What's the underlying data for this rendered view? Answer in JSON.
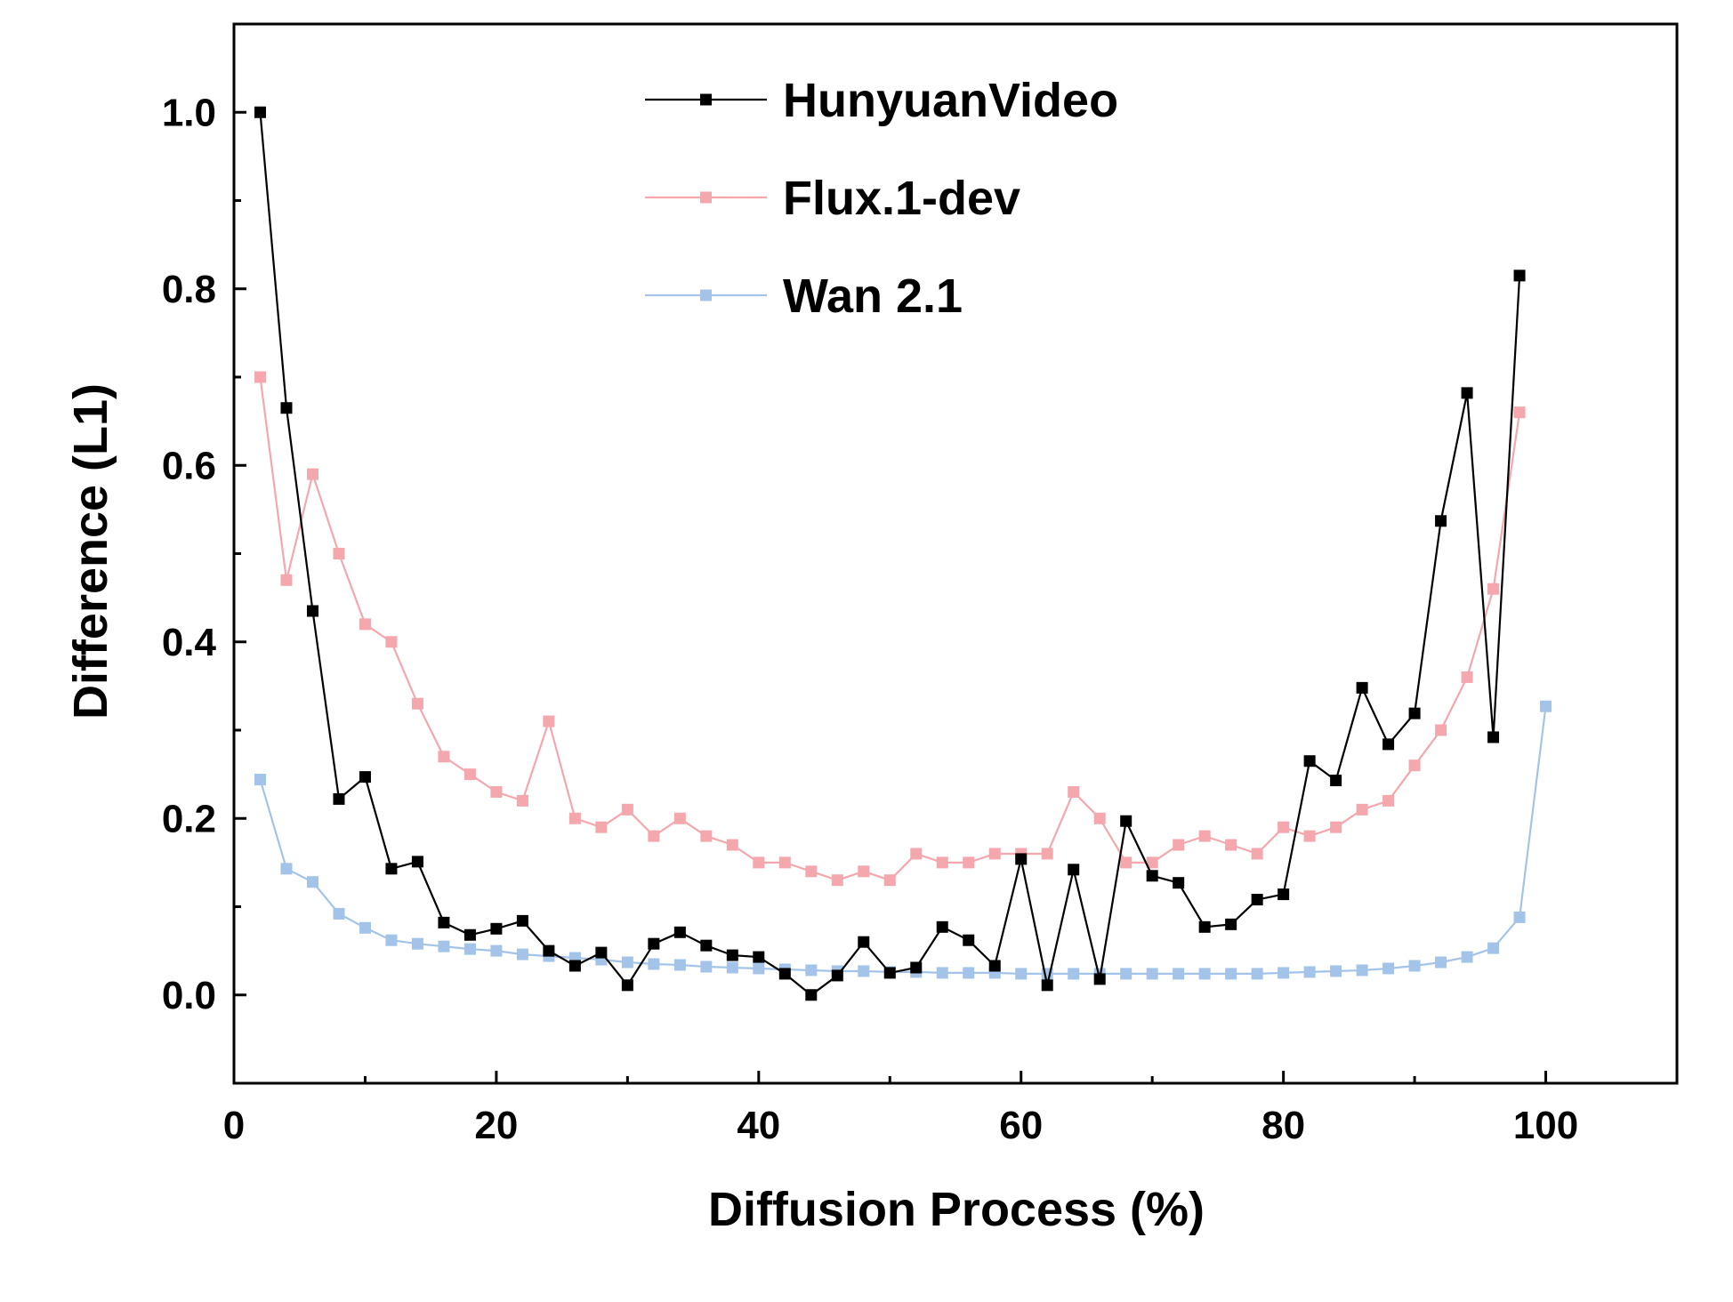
{
  "chart_data": {
    "type": "line",
    "title": "",
    "xlabel": "Diffusion Process (%)",
    "ylabel": "Difference (L1)",
    "xlim": [
      0,
      110
    ],
    "ylim": [
      -0.1,
      1.1
    ],
    "xticks": [
      0,
      20,
      40,
      60,
      80,
      100
    ],
    "yticks": [
      0.0,
      0.2,
      0.4,
      0.6,
      0.8,
      1.0
    ],
    "xtick_labels": [
      "0",
      "20",
      "40",
      "60",
      "80",
      "100"
    ],
    "ytick_labels": [
      "0.0",
      "0.2",
      "0.4",
      "0.6",
      "0.8",
      "1.0"
    ],
    "grid": false,
    "legend_position": "top-center",
    "series": [
      {
        "name": "HunyuanVideo",
        "color": "#000000",
        "marker": "square",
        "x": [
          2,
          4,
          6,
          8,
          10,
          12,
          14,
          16,
          18,
          20,
          22,
          24,
          26,
          28,
          30,
          32,
          34,
          36,
          38,
          40,
          42,
          44,
          46,
          48,
          50,
          52,
          54,
          56,
          58,
          60,
          62,
          64,
          66,
          68,
          70,
          72,
          74,
          76,
          78,
          80,
          82,
          84,
          86,
          88,
          90,
          92,
          94,
          96,
          98
        ],
        "y": [
          1.0,
          0.665,
          0.435,
          0.222,
          0.247,
          0.143,
          0.151,
          0.082,
          0.068,
          0.075,
          0.084,
          0.05,
          0.033,
          0.048,
          0.011,
          0.058,
          0.071,
          0.056,
          0.045,
          0.043,
          0.024,
          0.0,
          0.022,
          0.06,
          0.025,
          0.031,
          0.077,
          0.062,
          0.033,
          0.154,
          0.011,
          0.142,
          0.018,
          0.197,
          0.135,
          0.127,
          0.077,
          0.08,
          0.108,
          0.114,
          0.265,
          0.243,
          0.348,
          0.284,
          0.319,
          0.537,
          0.682,
          0.292,
          0.815
        ]
      },
      {
        "name": "Flux.1-dev",
        "color": "#f4a7ad",
        "marker": "square",
        "x": [
          2,
          4,
          6,
          8,
          10,
          12,
          14,
          16,
          18,
          20,
          22,
          24,
          26,
          28,
          30,
          32,
          34,
          36,
          38,
          40,
          42,
          44,
          46,
          48,
          50,
          52,
          54,
          56,
          58,
          60,
          62,
          64,
          66,
          68,
          70,
          72,
          74,
          76,
          78,
          80,
          82,
          84,
          86,
          88,
          90,
          92,
          94,
          96,
          98
        ],
        "y": [
          0.7,
          0.47,
          0.59,
          0.5,
          0.42,
          0.4,
          0.33,
          0.27,
          0.25,
          0.23,
          0.22,
          0.31,
          0.2,
          0.19,
          0.21,
          0.18,
          0.2,
          0.18,
          0.17,
          0.15,
          0.15,
          0.14,
          0.13,
          0.14,
          0.13,
          0.16,
          0.15,
          0.15,
          0.16,
          0.16,
          0.16,
          0.23,
          0.2,
          0.15,
          0.15,
          0.17,
          0.18,
          0.17,
          0.16,
          0.19,
          0.18,
          0.19,
          0.21,
          0.22,
          0.26,
          0.3,
          0.36,
          0.46,
          0.66
        ]
      },
      {
        "name": "Wan 2.1",
        "color": "#a3c4e8",
        "marker": "square",
        "x": [
          2,
          4,
          6,
          8,
          10,
          12,
          14,
          16,
          18,
          20,
          22,
          24,
          26,
          28,
          30,
          32,
          34,
          36,
          38,
          40,
          42,
          44,
          46,
          48,
          50,
          52,
          54,
          56,
          58,
          60,
          62,
          64,
          66,
          68,
          70,
          72,
          74,
          76,
          78,
          80,
          82,
          84,
          86,
          88,
          90,
          92,
          94,
          96,
          98,
          100
        ],
        "y": [
          0.244,
          0.143,
          0.128,
          0.092,
          0.076,
          0.062,
          0.058,
          0.055,
          0.052,
          0.05,
          0.046,
          0.044,
          0.042,
          0.04,
          0.037,
          0.035,
          0.034,
          0.032,
          0.031,
          0.03,
          0.029,
          0.028,
          0.027,
          0.027,
          0.026,
          0.026,
          0.025,
          0.025,
          0.025,
          0.024,
          0.024,
          0.024,
          0.024,
          0.024,
          0.024,
          0.024,
          0.024,
          0.024,
          0.024,
          0.025,
          0.026,
          0.027,
          0.028,
          0.03,
          0.033,
          0.037,
          0.043,
          0.053,
          0.088,
          0.327
        ]
      }
    ]
  }
}
